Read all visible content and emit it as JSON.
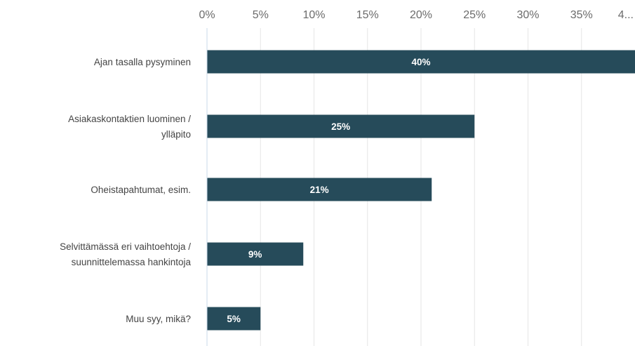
{
  "chart_data": {
    "type": "bar",
    "orientation": "horizontal",
    "categories": [
      [
        "Ajan tasalla pysyminen"
      ],
      [
        "Asiakaskontaktien luominen /",
        "ylläpito"
      ],
      [
        "Oheistapahtumat, esim."
      ],
      [
        "Selvittämässä eri vaihtoehtoja /",
        "suunnittelemassa hankintoja"
      ],
      [
        "Muu syy, mikä?"
      ]
    ],
    "values": [
      40,
      25,
      21,
      9,
      5
    ],
    "data_labels": [
      "40%",
      "25%",
      "21%",
      "9%",
      "5%"
    ],
    "x_ticks": [
      "0%",
      "5%",
      "10%",
      "15%",
      "20%",
      "25%",
      "30%",
      "35%",
      "4..."
    ],
    "x_tick_values": [
      0,
      5,
      10,
      15,
      20,
      25,
      30,
      35,
      40
    ],
    "xlim": [
      0,
      40
    ],
    "x_axis_position": "top",
    "grid": true,
    "colors": {
      "bar": "#264b5a",
      "grid": "#e6e6e6",
      "axis": "#c9d9e8"
    }
  }
}
